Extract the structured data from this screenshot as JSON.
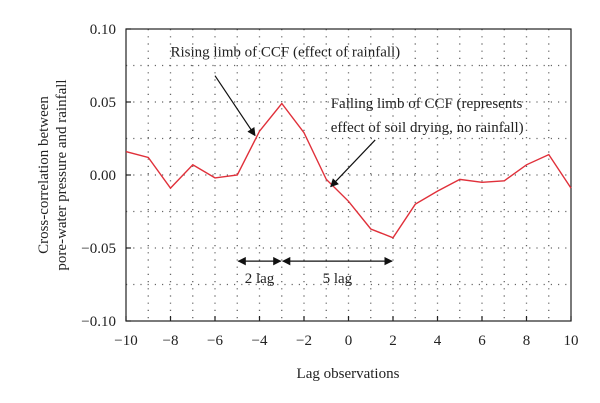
{
  "chart_data": {
    "type": "line",
    "xlabel": "Lag observations",
    "ylabel_lines": [
      "Cross-correlation between",
      "pore-water pressure and rainfall"
    ],
    "xlim": [
      -10,
      10
    ],
    "ylim": [
      -0.1,
      0.1
    ],
    "xticks": [
      -10,
      -8,
      -6,
      -4,
      -2,
      0,
      2,
      4,
      6,
      8,
      10
    ],
    "xtick_labels": [
      "−10",
      "−8",
      "−6",
      "−4",
      "−2",
      "0",
      "2",
      "4",
      "6",
      "8",
      "10"
    ],
    "yticks": [
      0.1,
      0.05,
      0.0,
      -0.05,
      -0.1
    ],
    "ytick_labels": [
      "0.10",
      "0.05",
      "0.00",
      "−0.05",
      "−0.10"
    ],
    "grid": "dotted",
    "series_color": "#e0303a",
    "series": [
      {
        "x": [
          -10,
          -9,
          -8,
          -7,
          -6,
          -5,
          -4,
          -3,
          -2,
          -1,
          0,
          1,
          2,
          3,
          4,
          5,
          6,
          7,
          8,
          9,
          10
        ],
        "values": [
          0.016,
          0.012,
          -0.009,
          0.007,
          -0.002,
          0.0,
          0.03,
          0.049,
          0.029,
          -0.003,
          -0.018,
          -0.037,
          -0.043,
          -0.02,
          -0.011,
          -0.003,
          -0.005,
          -0.004,
          0.007,
          0.014,
          -0.009
        ]
      }
    ],
    "annotations": [
      {
        "text": "Rising limb of CCF (effect of rainfall)",
        "text_x": -8.0,
        "text_y": 0.081,
        "arrow_from": [
          -6.0,
          0.068
        ],
        "arrow_to": [
          -4.2,
          0.027
        ]
      },
      {
        "lines": [
          "Falling limb of CCF (represents",
          "effect of soil drying, no rainfall)"
        ],
        "text_x": -0.8,
        "text_y": 0.046,
        "arrow_from": [
          1.2,
          0.024
        ],
        "arrow_to": [
          -0.8,
          -0.008
        ]
      },
      {
        "text": "2 lag",
        "range": [
          -5,
          -3
        ],
        "y": -0.059
      },
      {
        "text": "5 lag",
        "range": [
          -3,
          2
        ],
        "y": -0.059
      }
    ]
  }
}
